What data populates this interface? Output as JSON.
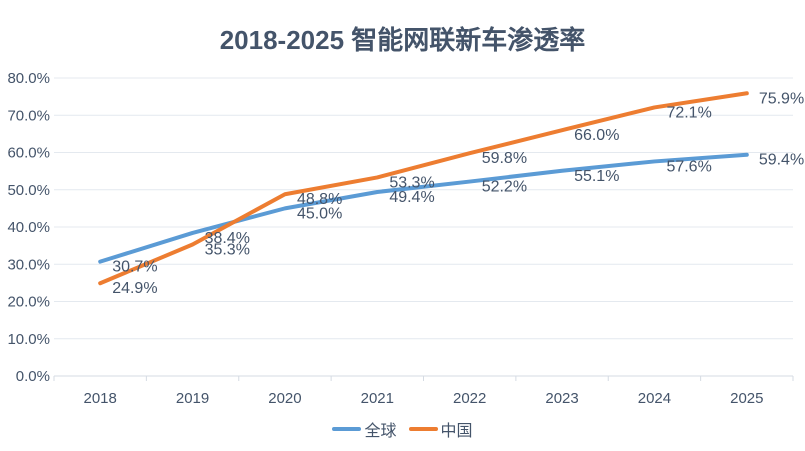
{
  "colors": {
    "text": "#44546A",
    "gridline": "#E4E9EF",
    "axis_line": "#D5DBE3",
    "background": "#FFFFFF"
  },
  "chart_data": {
    "type": "line",
    "title": "2018-2025 智能网联新车渗透率",
    "categories": [
      "2018",
      "2019",
      "2020",
      "2021",
      "2022",
      "2023",
      "2024",
      "2025"
    ],
    "series": [
      {
        "name": "全球",
        "color": "#5B9BD5",
        "values": [
          30.7,
          38.4,
          45.0,
          49.4,
          52.2,
          55.1,
          57.6,
          59.4
        ]
      },
      {
        "name": "中国",
        "color": "#ED7D31",
        "values": [
          24.9,
          35.3,
          48.8,
          53.3,
          59.8,
          66.0,
          72.1,
          75.9
        ]
      }
    ],
    "xlabel": "",
    "ylabel": "",
    "ylim": [
      0,
      80
    ],
    "ytick_step": 10,
    "ytick_labels": [
      "0.0%",
      "10.0%",
      "20.0%",
      "30.0%",
      "40.0%",
      "50.0%",
      "60.0%",
      "70.0%",
      "80.0%"
    ],
    "data_label_format": "one_decimal_percent",
    "grid": "horizontal",
    "legend_position": "bottom",
    "data_labels": true
  }
}
